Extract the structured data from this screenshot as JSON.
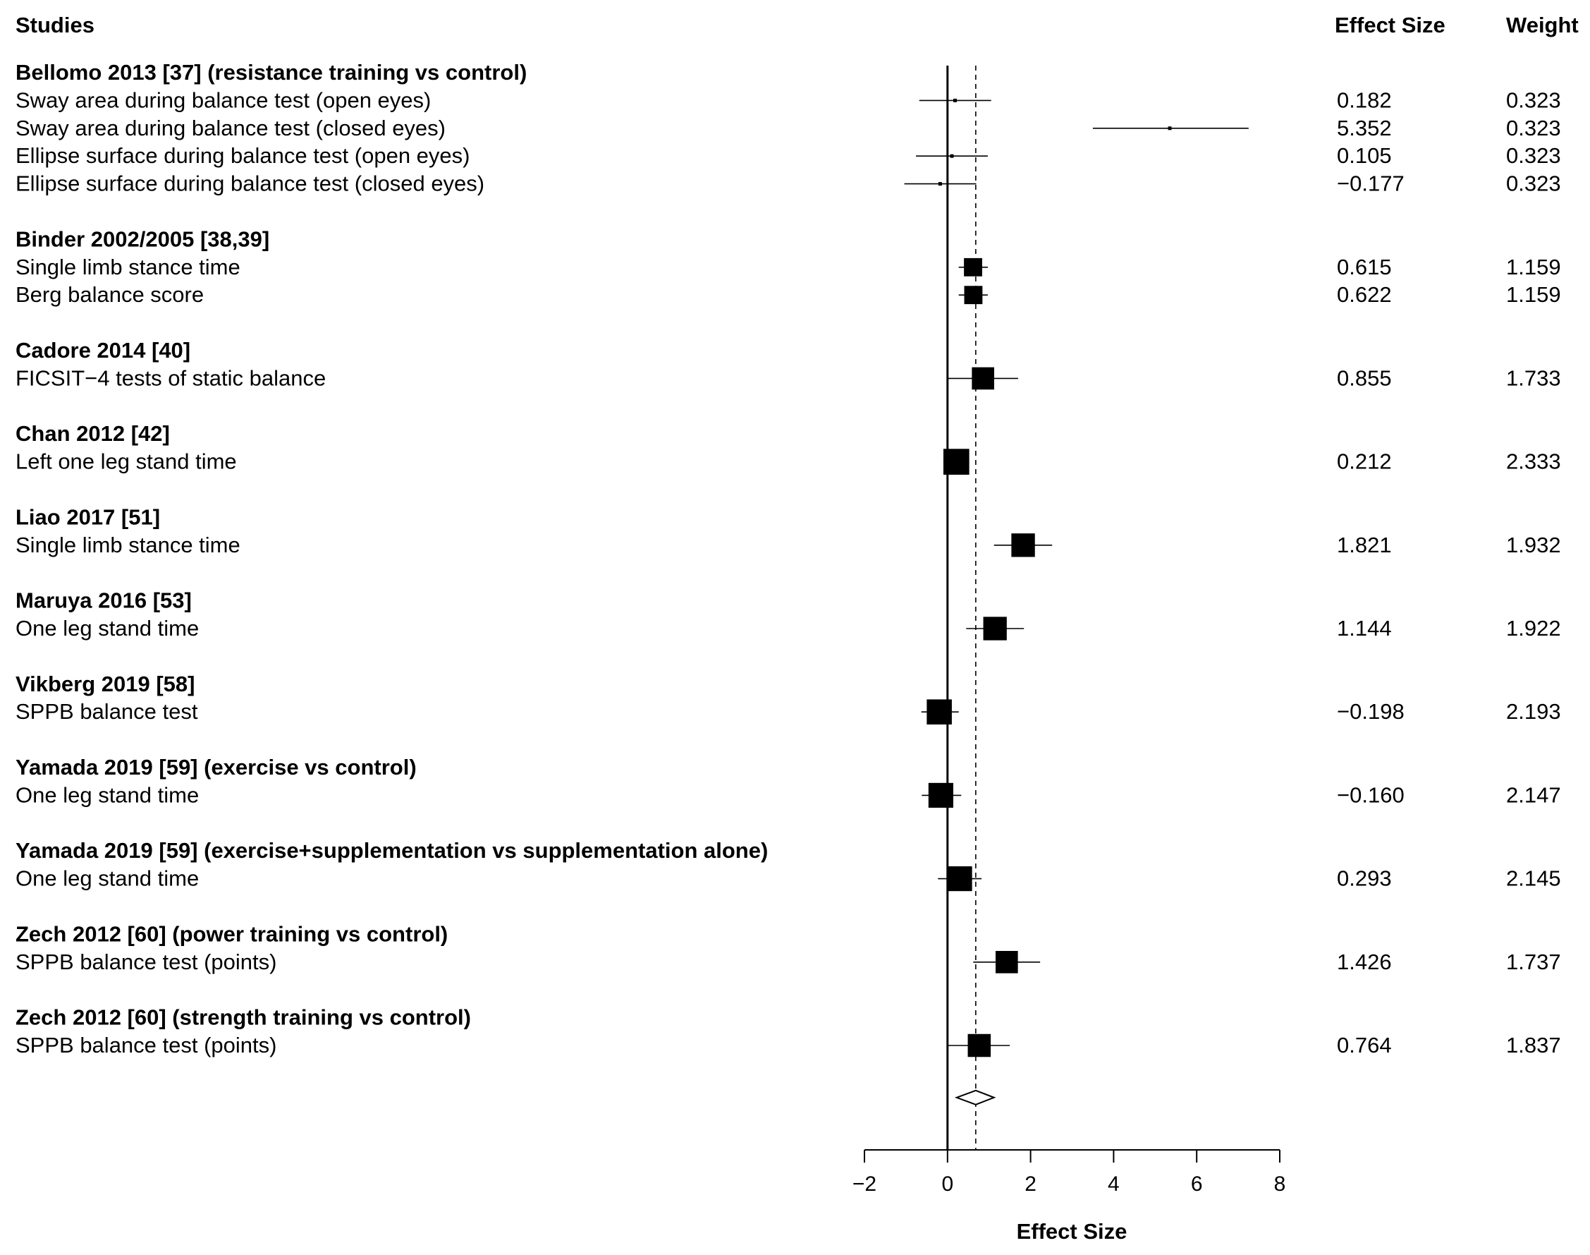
{
  "chart_data": {
    "type": "forest",
    "headers": {
      "studies": "Studies",
      "effect": "Effect Size",
      "weight": "Weight"
    },
    "xlabel": "Effect Size",
    "xlim": [
      -2,
      8
    ],
    "ticks": [
      -2,
      0,
      2,
      4,
      6,
      8
    ],
    "tick_labels": [
      "−2",
      "0",
      "2",
      "4",
      "6",
      "8"
    ],
    "reference_line": 0,
    "pooled_estimate": 0.68,
    "pooled_ci": [
      0.22,
      1.12
    ],
    "groups": [
      {
        "title": "Bellomo 2013 [37] (resistance training vs control)",
        "rows": [
          {
            "label": "Sway area during balance test (open eyes)",
            "effect": 0.182,
            "effect_text": "0.182",
            "weight_text": "0.323",
            "weight": 0.323,
            "ci": [
              -0.68,
              1.05
            ]
          },
          {
            "label": "Sway area during balance test (closed eyes)",
            "effect": 5.352,
            "effect_text": "5.352",
            "weight_text": "0.323",
            "weight": 0.323,
            "ci": [
              3.5,
              7.25
            ]
          },
          {
            "label": "Ellipse surface during balance test (open eyes)",
            "effect": 0.105,
            "effect_text": "0.105",
            "weight_text": "0.323",
            "weight": 0.323,
            "ci": [
              -0.76,
              0.97
            ]
          },
          {
            "label": "Ellipse surface during balance test (closed eyes)",
            "effect": -0.177,
            "effect_text": "−0.177",
            "weight_text": "0.323",
            "weight": 0.323,
            "ci": [
              -1.04,
              0.69
            ]
          }
        ]
      },
      {
        "title": "Binder 2002/2005 [38,39]",
        "rows": [
          {
            "label": "Single limb stance time",
            "effect": 0.615,
            "effect_text": "0.615",
            "weight_text": "1.159",
            "weight": 1.159,
            "ci": [
              0.27,
              0.97
            ]
          },
          {
            "label": "Berg balance score",
            "effect": 0.622,
            "effect_text": "0.622",
            "weight_text": "1.159",
            "weight": 1.159,
            "ci": [
              0.27,
              0.97
            ]
          }
        ]
      },
      {
        "title": "Cadore 2014 [40]",
        "rows": [
          {
            "label": "FICSIT−4 tests of static balance",
            "effect": 0.855,
            "effect_text": "0.855",
            "weight_text": "1.733",
            "weight": 1.733,
            "ci": [
              0.02,
              1.7
            ]
          }
        ]
      },
      {
        "title": "Chan 2012 [42]",
        "rows": [
          {
            "label": "Left one leg stand time",
            "effect": 0.212,
            "effect_text": "0.212",
            "weight_text": "2.333",
            "weight": 2.333,
            "ci": [
              -0.1,
              0.52
            ]
          }
        ]
      },
      {
        "title": "Liao 2017 [51]",
        "rows": [
          {
            "label": "Single limb stance time",
            "effect": 1.821,
            "effect_text": "1.821",
            "weight_text": "1.932",
            "weight": 1.932,
            "ci": [
              1.12,
              2.52
            ]
          }
        ]
      },
      {
        "title": "Maruya 2016 [53]",
        "rows": [
          {
            "label": "One leg stand time",
            "effect": 1.144,
            "effect_text": "1.144",
            "weight_text": "1.922",
            "weight": 1.922,
            "ci": [
              0.45,
              1.84
            ]
          }
        ]
      },
      {
        "title": "Vikberg 2019 [58]",
        "rows": [
          {
            "label": "SPPB balance test",
            "effect": -0.198,
            "effect_text": "−0.198",
            "weight_text": "2.193",
            "weight": 2.193,
            "ci": [
              -0.63,
              0.27
            ]
          }
        ]
      },
      {
        "title": "Yamada 2019 [59] (exercise vs control)",
        "rows": [
          {
            "label": "One leg stand time",
            "effect": -0.16,
            "effect_text": "−0.160",
            "weight_text": "2.147",
            "weight": 2.147,
            "ci": [
              -0.62,
              0.33
            ]
          }
        ]
      },
      {
        "title": "Yamada 2019 [59] (exercise+supplementation vs supplementation alone)",
        "rows": [
          {
            "label": "One leg stand time",
            "effect": 0.293,
            "effect_text": "0.293",
            "weight_text": "2.145",
            "weight": 2.145,
            "ci": [
              -0.23,
              0.82
            ]
          }
        ]
      },
      {
        "title": "Zech 2012 [60] (power training vs control)",
        "rows": [
          {
            "label": "SPPB balance test (points)",
            "effect": 1.426,
            "effect_text": "1.426",
            "weight_text": "1.737",
            "weight": 1.737,
            "ci": [
              0.62,
              2.23
            ]
          }
        ]
      },
      {
        "title": "Zech 2012 [60] (strength training vs control)",
        "rows": [
          {
            "label": "SPPB balance test (points)",
            "effect": 0.764,
            "effect_text": "0.764",
            "weight_text": "1.837",
            "weight": 1.837,
            "ci": [
              0.01,
              1.5
            ]
          }
        ]
      }
    ]
  }
}
